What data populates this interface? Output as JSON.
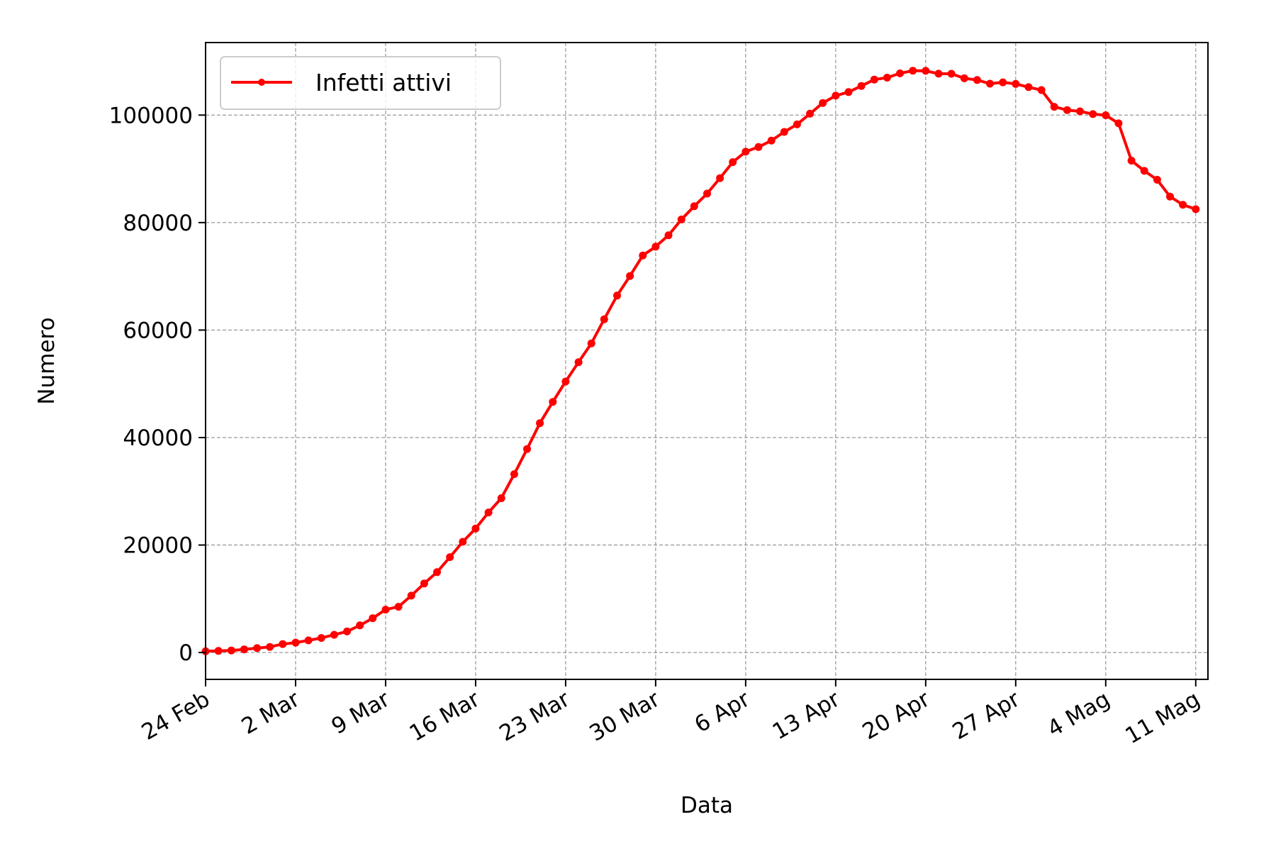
{
  "chart_data": {
    "type": "line",
    "xlabel": "Data",
    "ylabel": "Numero",
    "x_tick_labels": [
      "24 Feb",
      "2 Mar",
      "9 Mar",
      "16 Mar",
      "23 Mar",
      "30 Mar",
      "6 Apr",
      "13 Apr",
      "20 Apr",
      "27 Apr",
      "4 Mag",
      "11 Mag"
    ],
    "y_tick_labels": [
      "0",
      "20000",
      "40000",
      "60000",
      "80000",
      "100000"
    ],
    "y_ticks": [
      0,
      20000,
      40000,
      60000,
      80000,
      100000
    ],
    "ylim": [
      -5000,
      113500
    ],
    "xlim_days": [
      0,
      77.2
    ],
    "grid": true,
    "legend_position": "top-left",
    "series": [
      {
        "name": "Infetti attivi",
        "color": "#ff0000",
        "marker": "circle",
        "x_start": "24 Feb",
        "values": [
          221,
          311,
          385,
          588,
          821,
          1049,
          1577,
          1835,
          2263,
          2706,
          3296,
          3916,
          5061,
          6387,
          7985,
          8514,
          10590,
          12839,
          14955,
          17750,
          20603,
          23073,
          26062,
          28710,
          33190,
          37860,
          42681,
          46638,
          50418,
          54030,
          57521,
          62013,
          66414,
          70065,
          73880,
          75528,
          77635,
          80572,
          83049,
          85388,
          88274,
          91246,
          93187,
          94067,
          95262,
          96877,
          98273,
          100269,
          102253,
          103616,
          104291,
          105418,
          106607,
          106962,
          107771,
          108257,
          108237,
          107709,
          107699,
          106848,
          106527,
          105847,
          106103,
          105813,
          105205,
          104657,
          101551,
          100943,
          100704,
          100179,
          99980,
          98467,
          91528,
          89624,
          87961,
          84842,
          83324,
          82488
        ]
      }
    ]
  }
}
